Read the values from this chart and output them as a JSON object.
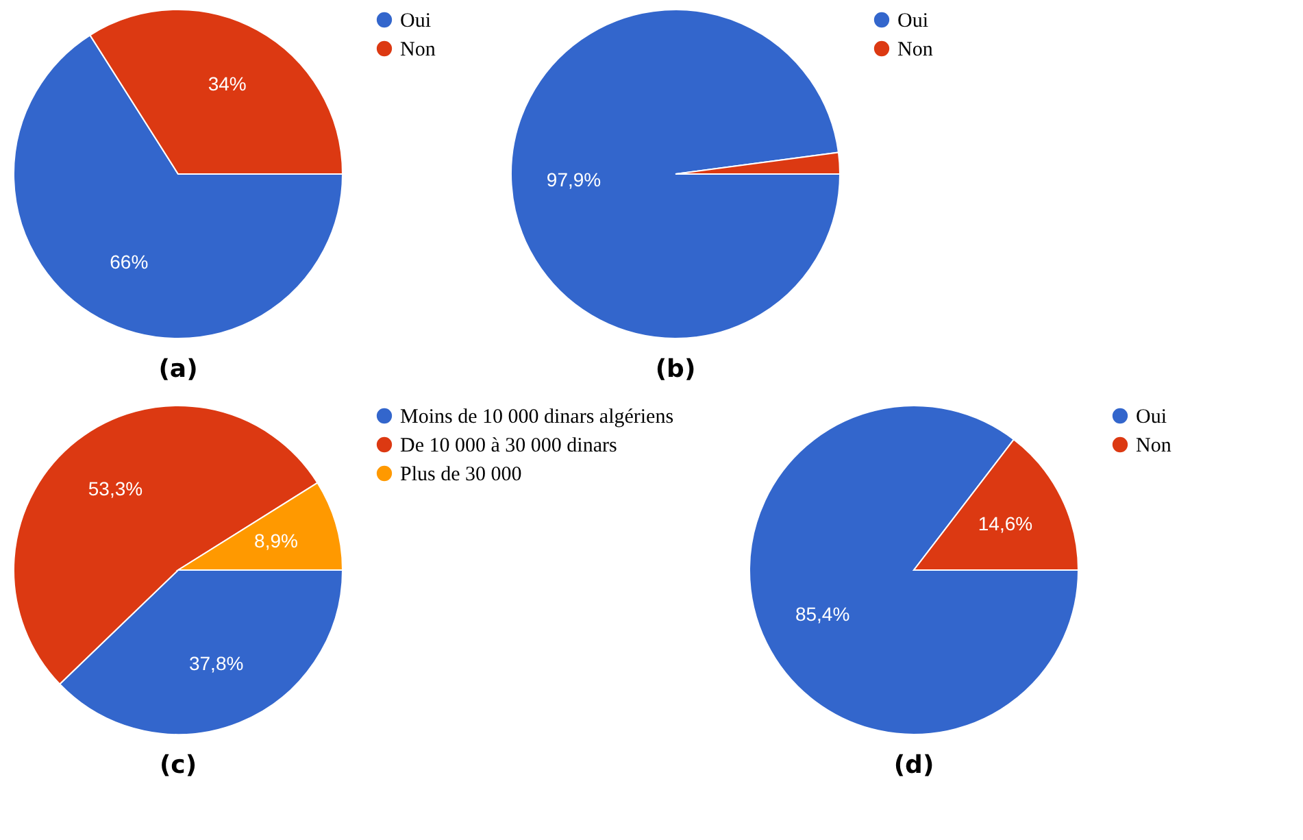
{
  "chart_data": [
    {
      "type": "pie",
      "categories": [
        "Oui",
        "Non"
      ],
      "values": [
        66,
        34
      ],
      "colors": [
        "#3366cc",
        "#dc3912"
      ],
      "value_labels": [
        "66%",
        "34%"
      ],
      "legend": "right",
      "annotations": [
        "(a)"
      ]
    },
    {
      "type": "pie",
      "categories": [
        "Oui",
        "Non"
      ],
      "values": [
        97.9,
        2.1
      ],
      "colors": [
        "#3366cc",
        "#dc3912"
      ],
      "value_labels": [
        "97,9%",
        null
      ],
      "legend": "right",
      "annotations": [
        "(b)"
      ]
    },
    {
      "type": "pie",
      "categories": [
        "Moins de 10 000 dinars algériens",
        "De 10 000 à 30 000 dinars",
        "Plus de 30 000"
      ],
      "values": [
        37.8,
        53.3,
        8.9
      ],
      "colors": [
        "#3366cc",
        "#dc3912",
        "#ff9900"
      ],
      "value_labels": [
        "37,8%",
        "53,3%",
        "8,9%"
      ],
      "legend": "right",
      "annotations": [
        "(c)"
      ]
    },
    {
      "type": "pie",
      "categories": [
        "Oui",
        "Non"
      ],
      "values": [
        85.4,
        14.6
      ],
      "colors": [
        "#3366cc",
        "#dc3912"
      ],
      "value_labels": [
        "85,4%",
        "14,6%"
      ],
      "legend": "right",
      "annotations": [
        "(d)"
      ]
    }
  ]
}
